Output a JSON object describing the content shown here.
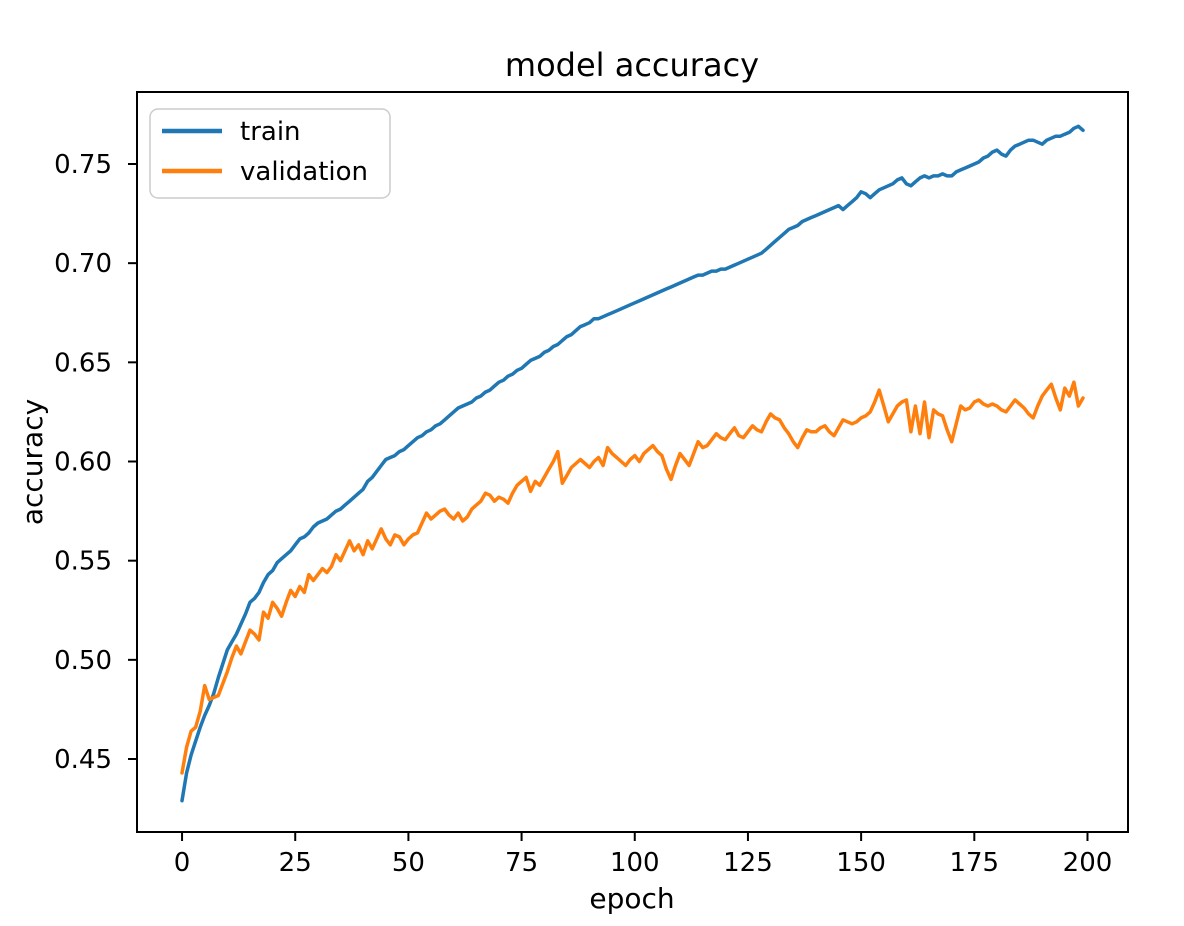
{
  "figure_title": "model accuracy",
  "chart_data": {
    "type": "line",
    "title": "model accuracy",
    "xlabel": "epoch",
    "ylabel": "accuracy",
    "grid": false,
    "legend_position": "upper left",
    "xlim": [
      -9.95,
      208.95
    ],
    "ylim": [
      0.4132,
      0.7863
    ],
    "xticks": [
      {
        "value": 0,
        "label": "0"
      },
      {
        "value": 25,
        "label": "25"
      },
      {
        "value": 50,
        "label": "50"
      },
      {
        "value": 75,
        "label": "75"
      },
      {
        "value": 100,
        "label": "100"
      },
      {
        "value": 125,
        "label": "125"
      },
      {
        "value": 150,
        "label": "150"
      },
      {
        "value": 175,
        "label": "175"
      },
      {
        "value": 200,
        "label": "200"
      }
    ],
    "yticks": [
      {
        "value": 0.45,
        "label": "0.45"
      },
      {
        "value": 0.5,
        "label": "0.50"
      },
      {
        "value": 0.55,
        "label": "0.55"
      },
      {
        "value": 0.6,
        "label": "0.60"
      },
      {
        "value": 0.65,
        "label": "0.65"
      },
      {
        "value": 0.7,
        "label": "0.70"
      },
      {
        "value": 0.75,
        "label": "0.75"
      }
    ],
    "x": [
      0,
      1,
      2,
      3,
      4,
      5,
      6,
      7,
      8,
      9,
      10,
      11,
      12,
      13,
      14,
      15,
      16,
      17,
      18,
      19,
      20,
      21,
      22,
      23,
      24,
      25,
      26,
      27,
      28,
      29,
      30,
      31,
      32,
      33,
      34,
      35,
      36,
      37,
      38,
      39,
      40,
      41,
      42,
      43,
      44,
      45,
      46,
      47,
      48,
      49,
      50,
      51,
      52,
      53,
      54,
      55,
      56,
      57,
      58,
      59,
      60,
      61,
      62,
      63,
      64,
      65,
      66,
      67,
      68,
      69,
      70,
      71,
      72,
      73,
      74,
      75,
      76,
      77,
      78,
      79,
      80,
      81,
      82,
      83,
      84,
      85,
      86,
      87,
      88,
      89,
      90,
      91,
      92,
      93,
      94,
      95,
      96,
      97,
      98,
      99,
      100,
      101,
      102,
      103,
      104,
      105,
      106,
      107,
      108,
      109,
      110,
      111,
      112,
      113,
      114,
      115,
      116,
      117,
      118,
      119,
      120,
      121,
      122,
      123,
      124,
      125,
      126,
      127,
      128,
      129,
      130,
      131,
      132,
      133,
      134,
      135,
      136,
      137,
      138,
      139,
      140,
      141,
      142,
      143,
      144,
      145,
      146,
      147,
      148,
      149,
      150,
      151,
      152,
      153,
      154,
      155,
      156,
      157,
      158,
      159,
      160,
      161,
      162,
      163,
      164,
      165,
      166,
      167,
      168,
      169,
      170,
      171,
      172,
      173,
      174,
      175,
      176,
      177,
      178,
      179,
      180,
      181,
      182,
      183,
      184,
      185,
      186,
      187,
      188,
      189,
      190,
      191,
      192,
      193,
      194,
      195,
      196,
      197,
      198,
      199
    ],
    "series": [
      {
        "name": "train",
        "color": "#1f77b4",
        "values": [
          0.429,
          0.443,
          0.452,
          0.459,
          0.466,
          0.472,
          0.477,
          0.483,
          0.491,
          0.498,
          0.505,
          0.509,
          0.513,
          0.518,
          0.523,
          0.529,
          0.531,
          0.534,
          0.539,
          0.543,
          0.545,
          0.549,
          0.551,
          0.553,
          0.555,
          0.558,
          0.561,
          0.562,
          0.564,
          0.567,
          0.569,
          0.57,
          0.571,
          0.573,
          0.575,
          0.576,
          0.578,
          0.58,
          0.582,
          0.584,
          0.586,
          0.59,
          0.592,
          0.595,
          0.598,
          0.601,
          0.602,
          0.603,
          0.605,
          0.606,
          0.608,
          0.61,
          0.612,
          0.613,
          0.615,
          0.616,
          0.618,
          0.619,
          0.621,
          0.623,
          0.625,
          0.627,
          0.628,
          0.629,
          0.63,
          0.632,
          0.633,
          0.635,
          0.636,
          0.638,
          0.64,
          0.641,
          0.643,
          0.644,
          0.646,
          0.647,
          0.649,
          0.651,
          0.652,
          0.653,
          0.655,
          0.656,
          0.658,
          0.659,
          0.661,
          0.663,
          0.664,
          0.666,
          0.668,
          0.669,
          0.67,
          0.672,
          0.672,
          0.673,
          0.674,
          0.675,
          0.676,
          0.677,
          0.678,
          0.679,
          0.68,
          0.681,
          0.682,
          0.683,
          0.684,
          0.685,
          0.686,
          0.687,
          0.688,
          0.689,
          0.69,
          0.691,
          0.692,
          0.693,
          0.694,
          0.694,
          0.695,
          0.696,
          0.696,
          0.697,
          0.697,
          0.698,
          0.699,
          0.7,
          0.701,
          0.702,
          0.703,
          0.704,
          0.705,
          0.707,
          0.709,
          0.711,
          0.713,
          0.715,
          0.717,
          0.718,
          0.719,
          0.721,
          0.722,
          0.723,
          0.724,
          0.725,
          0.726,
          0.727,
          0.728,
          0.729,
          0.727,
          0.729,
          0.731,
          0.733,
          0.736,
          0.735,
          0.733,
          0.735,
          0.737,
          0.738,
          0.739,
          0.74,
          0.742,
          0.743,
          0.74,
          0.739,
          0.741,
          0.743,
          0.744,
          0.743,
          0.744,
          0.744,
          0.745,
          0.744,
          0.744,
          0.746,
          0.747,
          0.748,
          0.749,
          0.75,
          0.751,
          0.753,
          0.754,
          0.756,
          0.757,
          0.755,
          0.754,
          0.757,
          0.759,
          0.76,
          0.761,
          0.762,
          0.762,
          0.761,
          0.76,
          0.762,
          0.763,
          0.764,
          0.764,
          0.765,
          0.766,
          0.768,
          0.769,
          0.767
        ]
      },
      {
        "name": "validation",
        "color": "#ff7f0e",
        "values": [
          0.443,
          0.456,
          0.464,
          0.466,
          0.474,
          0.487,
          0.48,
          0.481,
          0.482,
          0.488,
          0.494,
          0.501,
          0.507,
          0.503,
          0.509,
          0.515,
          0.513,
          0.51,
          0.524,
          0.521,
          0.529,
          0.526,
          0.522,
          0.529,
          0.535,
          0.532,
          0.537,
          0.534,
          0.543,
          0.54,
          0.543,
          0.546,
          0.544,
          0.547,
          0.553,
          0.55,
          0.555,
          0.56,
          0.555,
          0.558,
          0.553,
          0.56,
          0.556,
          0.561,
          0.566,
          0.561,
          0.558,
          0.563,
          0.562,
          0.558,
          0.561,
          0.563,
          0.564,
          0.569,
          0.574,
          0.571,
          0.573,
          0.575,
          0.576,
          0.573,
          0.571,
          0.574,
          0.57,
          0.572,
          0.576,
          0.578,
          0.58,
          0.584,
          0.583,
          0.58,
          0.582,
          0.581,
          0.579,
          0.584,
          0.588,
          0.59,
          0.592,
          0.585,
          0.59,
          0.588,
          0.592,
          0.596,
          0.6,
          0.605,
          0.589,
          0.593,
          0.597,
          0.599,
          0.601,
          0.599,
          0.597,
          0.6,
          0.602,
          0.598,
          0.607,
          0.604,
          0.602,
          0.6,
          0.598,
          0.601,
          0.603,
          0.6,
          0.604,
          0.606,
          0.608,
          0.605,
          0.603,
          0.596,
          0.591,
          0.598,
          0.604,
          0.601,
          0.598,
          0.604,
          0.61,
          0.607,
          0.608,
          0.611,
          0.614,
          0.612,
          0.611,
          0.614,
          0.617,
          0.613,
          0.612,
          0.615,
          0.618,
          0.616,
          0.615,
          0.62,
          0.624,
          0.622,
          0.621,
          0.617,
          0.614,
          0.61,
          0.607,
          0.612,
          0.616,
          0.615,
          0.615,
          0.617,
          0.618,
          0.615,
          0.613,
          0.617,
          0.621,
          0.62,
          0.619,
          0.62,
          0.622,
          0.623,
          0.625,
          0.63,
          0.636,
          0.628,
          0.62,
          0.624,
          0.628,
          0.63,
          0.631,
          0.615,
          0.628,
          0.614,
          0.63,
          0.612,
          0.626,
          0.624,
          0.623,
          0.616,
          0.61,
          0.619,
          0.628,
          0.626,
          0.627,
          0.63,
          0.631,
          0.629,
          0.628,
          0.629,
          0.628,
          0.626,
          0.625,
          0.628,
          0.631,
          0.629,
          0.627,
          0.624,
          0.622,
          0.628,
          0.633,
          0.636,
          0.639,
          0.632,
          0.626,
          0.637,
          0.633,
          0.64,
          0.628,
          0.632
        ]
      }
    ]
  }
}
